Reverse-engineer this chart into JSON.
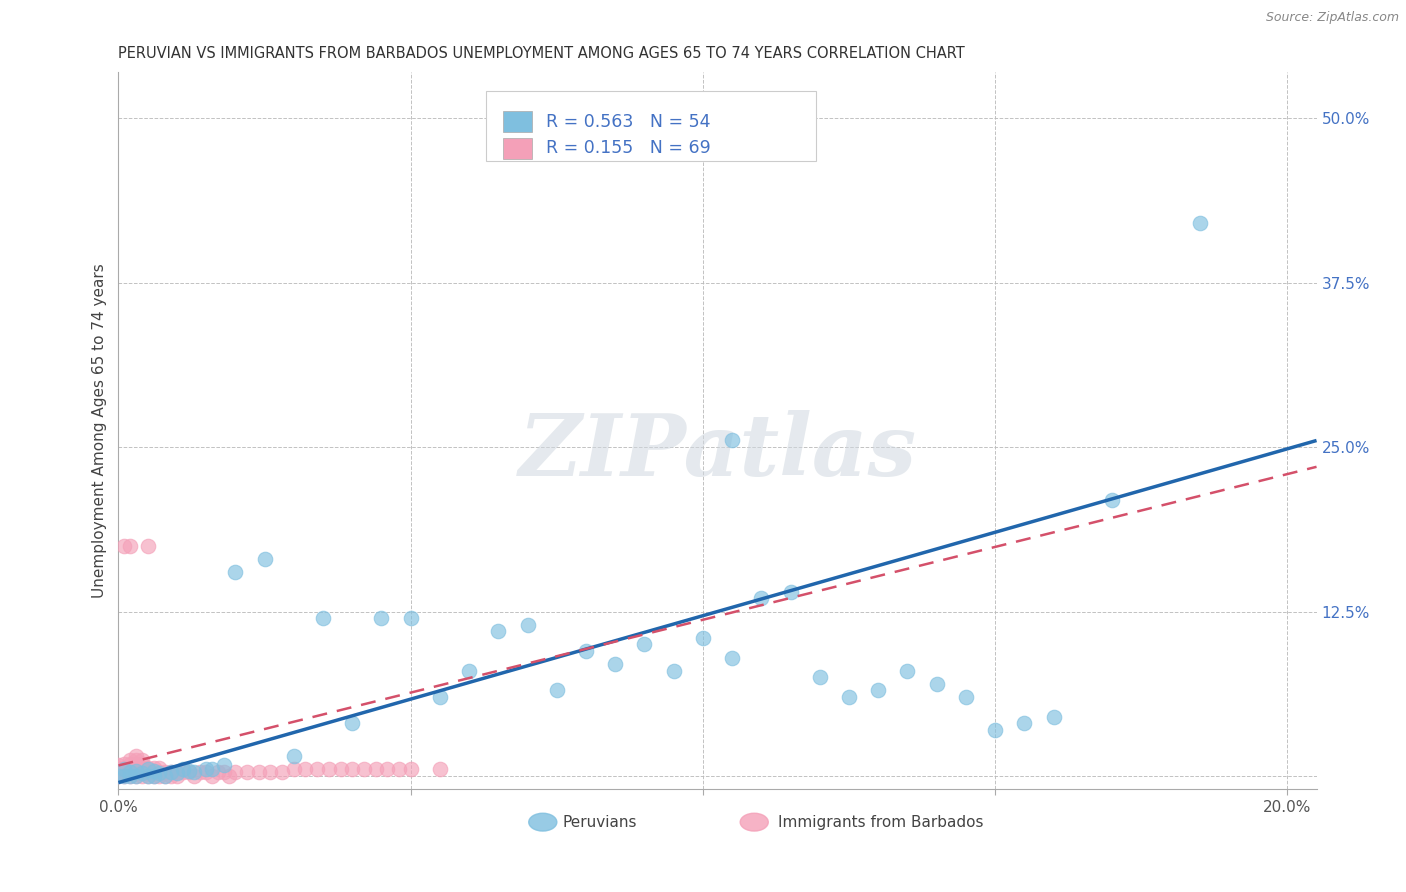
{
  "title": "PERUVIAN VS IMMIGRANTS FROM BARBADOS UNEMPLOYMENT AMONG AGES 65 TO 74 YEARS CORRELATION CHART",
  "source": "Source: ZipAtlas.com",
  "ylabel": "Unemployment Among Ages 65 to 74 years",
  "xlim": [
    0.0,
    0.205
  ],
  "ylim": [
    -0.01,
    0.535
  ],
  "x_ticks": [
    0.0,
    0.05,
    0.1,
    0.15,
    0.2
  ],
  "x_tick_labels": [
    "0.0%",
    "",
    "",
    "",
    "20.0%"
  ],
  "y_ticks": [
    0.0,
    0.125,
    0.25,
    0.375,
    0.5
  ],
  "y_tick_labels": [
    "",
    "12.5%",
    "25.0%",
    "37.5%",
    "50.0%"
  ],
  "peruvian_color": "#7fbfdf",
  "barbados_color": "#f4a0b8",
  "peruvian_line_color": "#2166ac",
  "barbados_line_color": "#d4506a",
  "watermark": "ZIPatlas",
  "legend_label_peru": "Peruvians",
  "legend_label_barb": "Immigrants from Barbados",
  "peru_R": "0.563",
  "peru_N": "54",
  "barb_R": "0.155",
  "barb_N": "69",
  "peru_line": [
    0.0,
    -0.005,
    0.205,
    0.255
  ],
  "barb_line": [
    0.0,
    0.008,
    0.205,
    0.235
  ],
  "peru_x": [
    0.0,
    0.001,
    0.001,
    0.002,
    0.002,
    0.003,
    0.003,
    0.004,
    0.005,
    0.005,
    0.006,
    0.006,
    0.007,
    0.008,
    0.009,
    0.01,
    0.011,
    0.012,
    0.013,
    0.015,
    0.016,
    0.018,
    0.02,
    0.025,
    0.03,
    0.035,
    0.04,
    0.045,
    0.05,
    0.055,
    0.06,
    0.065,
    0.07,
    0.075,
    0.08,
    0.085,
    0.09,
    0.095,
    0.1,
    0.105,
    0.11,
    0.115,
    0.12,
    0.125,
    0.13,
    0.135,
    0.14,
    0.145,
    0.15,
    0.155,
    0.16,
    0.17,
    0.185,
    0.105
  ],
  "peru_y": [
    0.0,
    0.0,
    0.005,
    0.0,
    0.003,
    0.0,
    0.004,
    0.002,
    0.0,
    0.005,
    0.0,
    0.004,
    0.002,
    0.0,
    0.003,
    0.002,
    0.005,
    0.004,
    0.003,
    0.005,
    0.005,
    0.008,
    0.155,
    0.165,
    0.015,
    0.12,
    0.04,
    0.12,
    0.12,
    0.06,
    0.08,
    0.11,
    0.115,
    0.065,
    0.095,
    0.085,
    0.1,
    0.08,
    0.105,
    0.09,
    0.135,
    0.14,
    0.075,
    0.06,
    0.065,
    0.08,
    0.07,
    0.06,
    0.035,
    0.04,
    0.045,
    0.21,
    0.42,
    0.255
  ],
  "barb_x": [
    0.0,
    0.0,
    0.0,
    0.0,
    0.0,
    0.001,
    0.001,
    0.001,
    0.001,
    0.001,
    0.002,
    0.002,
    0.002,
    0.002,
    0.002,
    0.002,
    0.003,
    0.003,
    0.003,
    0.003,
    0.003,
    0.003,
    0.004,
    0.004,
    0.004,
    0.004,
    0.004,
    0.005,
    0.005,
    0.005,
    0.005,
    0.006,
    0.006,
    0.006,
    0.007,
    0.007,
    0.007,
    0.008,
    0.008,
    0.009,
    0.009,
    0.01,
    0.01,
    0.011,
    0.012,
    0.013,
    0.014,
    0.015,
    0.016,
    0.017,
    0.018,
    0.019,
    0.02,
    0.022,
    0.024,
    0.026,
    0.028,
    0.03,
    0.032,
    0.034,
    0.036,
    0.038,
    0.04,
    0.042,
    0.044,
    0.046,
    0.048,
    0.05,
    0.055
  ],
  "barb_y": [
    0.0,
    0.002,
    0.004,
    0.006,
    0.008,
    0.0,
    0.003,
    0.006,
    0.009,
    0.175,
    0.0,
    0.003,
    0.006,
    0.009,
    0.012,
    0.175,
    0.0,
    0.003,
    0.006,
    0.009,
    0.012,
    0.015,
    0.0,
    0.003,
    0.006,
    0.009,
    0.012,
    0.0,
    0.003,
    0.006,
    0.175,
    0.0,
    0.003,
    0.006,
    0.0,
    0.003,
    0.006,
    0.0,
    0.003,
    0.0,
    0.003,
    0.0,
    0.003,
    0.003,
    0.003,
    0.0,
    0.003,
    0.003,
    0.0,
    0.003,
    0.003,
    0.0,
    0.003,
    0.003,
    0.003,
    0.003,
    0.003,
    0.005,
    0.005,
    0.005,
    0.005,
    0.005,
    0.005,
    0.005,
    0.005,
    0.005,
    0.005,
    0.005,
    0.005
  ]
}
